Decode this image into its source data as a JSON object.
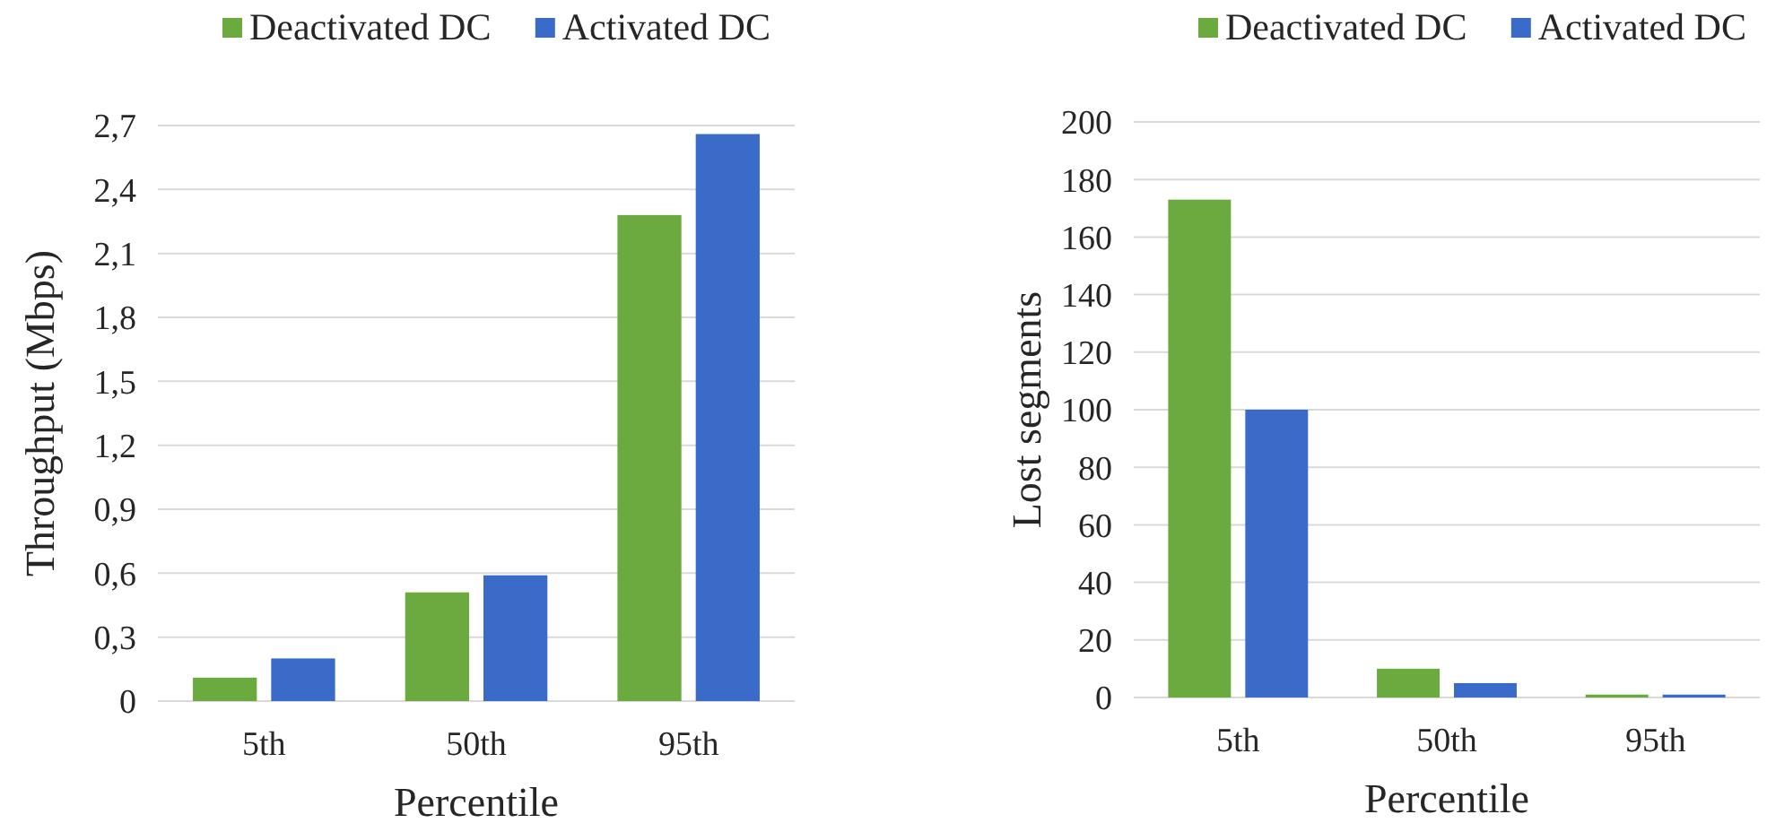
{
  "chart_data": [
    {
      "type": "bar",
      "xlabel": "Percentile",
      "ylabel": "Throughput (Mbps)",
      "categories": [
        "5th",
        "50th",
        "95th"
      ],
      "series": [
        {
          "name": "Deactivated DC",
          "color": "#6aaa3f",
          "values": [
            0.11,
            0.51,
            2.28
          ]
        },
        {
          "name": "Activated DC",
          "color": "#3a6bc8",
          "values": [
            0.2,
            0.59,
            2.66
          ]
        }
      ],
      "ylim": [
        0,
        2.7
      ],
      "yticks": [
        0,
        {
          "value": 0.3,
          "label": "0,3"
        },
        {
          "value": 0.6,
          "label": "0,6"
        },
        {
          "value": 0.9,
          "label": "0,9"
        },
        {
          "value": 1.2,
          "label": "1,2"
        },
        {
          "value": 1.5,
          "label": "1,5"
        },
        {
          "value": 1.8,
          "label": "1,8"
        },
        {
          "value": 2.1,
          "label": "2,1"
        },
        {
          "value": 2.4,
          "label": "2,4"
        },
        {
          "value": 2.7,
          "label": "2,7"
        }
      ],
      "grid": "y",
      "legend": "top"
    },
    {
      "type": "bar",
      "xlabel": "Percentile",
      "ylabel": "Lost segments",
      "categories": [
        "5th",
        "50th",
        "95th"
      ],
      "series": [
        {
          "name": "Deactivated DC",
          "color": "#6aaa3f",
          "values": [
            173,
            10,
            1
          ]
        },
        {
          "name": "Activated DC",
          "color": "#3a6bc8",
          "values": [
            100,
            5,
            1
          ]
        }
      ],
      "ylim": [
        0,
        200
      ],
      "yticks": [
        0,
        20,
        40,
        60,
        80,
        100,
        120,
        140,
        160,
        180,
        200
      ],
      "grid": "y",
      "legend": "top"
    }
  ]
}
